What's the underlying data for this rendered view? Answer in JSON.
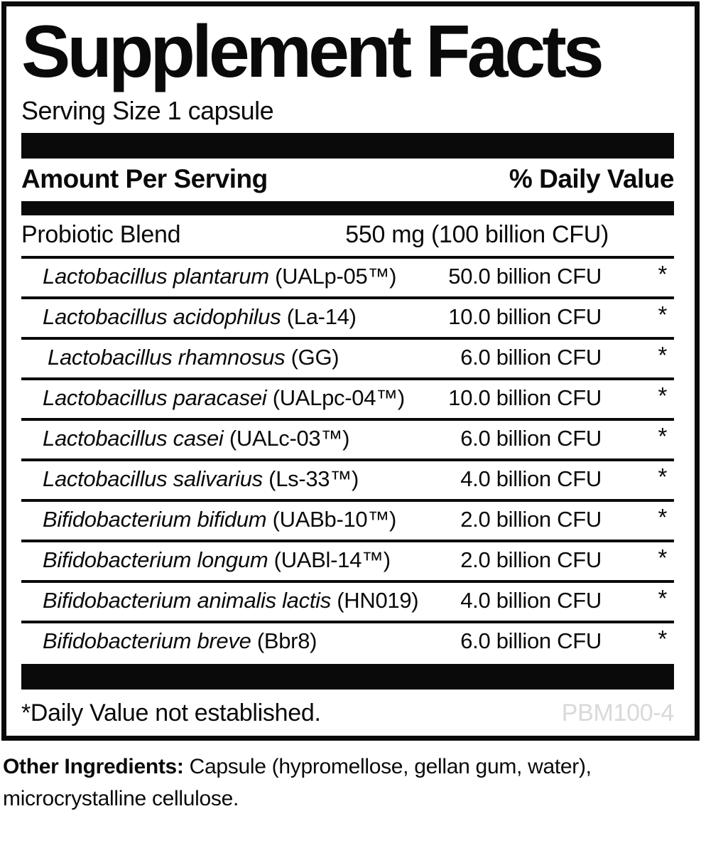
{
  "panel": {
    "title": "Supplement Facts",
    "serving_size": "Serving Size 1 capsule",
    "columns": {
      "amount_header": "Amount Per Serving",
      "daily_value_header": "% Daily Value"
    },
    "blend": {
      "name": "Probiotic Blend",
      "amount": "550 mg (100 billion CFU)"
    },
    "rows": [
      {
        "species": "Lactobacillus plantarum",
        "strain": "(UALp-05™)",
        "amount": "50.0 billion CFU",
        "dv": "*"
      },
      {
        "species": "Lactobacillus acidophilus",
        "strain": "(La-14)",
        "amount": "10.0 billion CFU",
        "dv": "*"
      },
      {
        "species": "Lactobacillus rhamnosus",
        "strain": "(GG)",
        "amount": "6.0 billion CFU",
        "dv": "*"
      },
      {
        "species": "Lactobacillus paracasei",
        "strain": "(UALpc-04™)",
        "amount": "10.0 billion CFU",
        "dv": "*"
      },
      {
        "species": "Lactobacillus casei",
        "strain": "(UALc-03™)",
        "amount": "6.0 billion CFU",
        "dv": "*"
      },
      {
        "species": "Lactobacillus salivarius",
        "strain": "(Ls-33™)",
        "amount": "4.0 billion CFU",
        "dv": "*"
      },
      {
        "species": "Bifidobacterium bifidum",
        "strain": "(UABb-10™)",
        "amount": "2.0 billion CFU",
        "dv": "*"
      },
      {
        "species": "Bifidobacterium longum",
        "strain": "(UABl-14™)",
        "amount": "2.0 billion CFU",
        "dv": "*"
      },
      {
        "species": "Bifidobacterium animalis lactis",
        "strain": "(HN019)",
        "amount": "4.0 billion CFU",
        "dv": "*"
      },
      {
        "species": "Bifidobacterium breve",
        "strain": "(Bbr8)",
        "amount": "6.0 billion CFU",
        "dv": "*"
      }
    ],
    "footnote": "*Daily Value not established.",
    "product_code": "PBM100-4"
  },
  "other_ingredients": {
    "label": "Other Ingredients:",
    "text": "Capsule (hypromellose, gellan gum, water), microcrystalline cellulose."
  },
  "colors": {
    "ink": "#0a0a0a",
    "background": "#ffffff",
    "product_code_gray": "#d9d9d9"
  }
}
